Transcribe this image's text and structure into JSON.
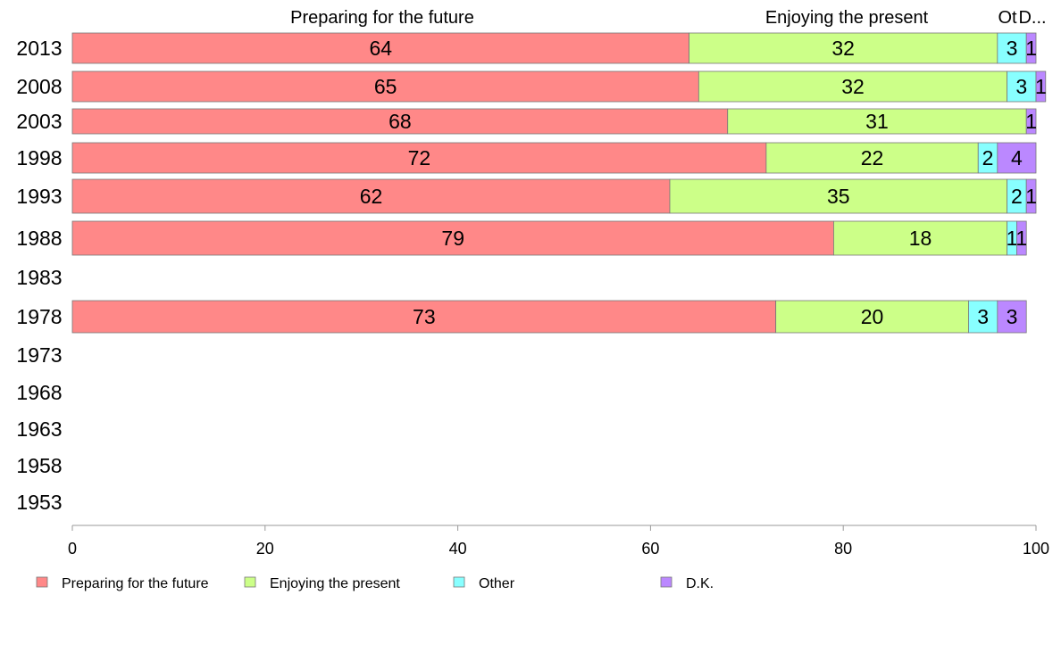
{
  "chart_data": {
    "type": "bar",
    "orientation": "horizontal",
    "stacked": true,
    "categories": [
      "2013",
      "2008",
      "2003",
      "1998",
      "1993",
      "1988",
      "1983",
      "1978",
      "1973",
      "1968",
      "1963",
      "1958",
      "1953"
    ],
    "series": [
      {
        "name": "Preparing for the future",
        "color": "#ff8888",
        "values": [
          64,
          65,
          68,
          72,
          62,
          79,
          null,
          73,
          null,
          null,
          null,
          null,
          null
        ]
      },
      {
        "name": "Enjoying the present",
        "color": "#ccff88",
        "values": [
          32,
          32,
          31,
          22,
          35,
          18,
          null,
          20,
          null,
          null,
          null,
          null,
          null
        ]
      },
      {
        "name": "Other",
        "color": "#88ffff",
        "values": [
          3,
          3,
          0,
          2,
          2,
          1,
          null,
          3,
          null,
          null,
          null,
          null,
          null
        ]
      },
      {
        "name": "D.K.",
        "color": "#bb88ff",
        "values": [
          1,
          1,
          1,
          4,
          1,
          1,
          null,
          3,
          null,
          null,
          null,
          null,
          null
        ]
      }
    ],
    "column_headers": [
      "Preparing for the future",
      "Enjoying the present",
      "Ot",
      "D..."
    ],
    "xlim": [
      0,
      100
    ],
    "xticks": [
      "0",
      "20",
      "40",
      "60",
      "80",
      "100"
    ],
    "grid": false,
    "legend_position": "bottom"
  }
}
